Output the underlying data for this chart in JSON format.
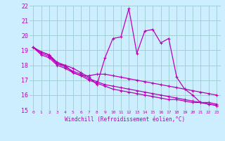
{
  "xlabel": "Windchill (Refroidissement éolien,°C)",
  "xlim": [
    -0.5,
    23.5
  ],
  "ylim": [
    15,
    22
  ],
  "yticks": [
    15,
    16,
    17,
    18,
    19,
    20,
    21,
    22
  ],
  "xticks": [
    0,
    1,
    2,
    3,
    4,
    5,
    6,
    7,
    8,
    9,
    10,
    11,
    12,
    13,
    14,
    15,
    16,
    17,
    18,
    19,
    20,
    21,
    22,
    23
  ],
  "bg_color": "#cceeff",
  "line_color": "#bb00bb",
  "grid_color": "#99cccc",
  "line1_y": [
    19.2,
    18.9,
    18.7,
    18.1,
    18.0,
    17.8,
    17.5,
    17.2,
    16.7,
    18.5,
    19.8,
    19.9,
    21.8,
    18.8,
    20.3,
    20.4,
    19.5,
    19.8,
    17.2,
    16.4,
    16.0,
    15.5,
    15.5,
    15.4
  ],
  "line2_y": [
    19.2,
    18.9,
    18.7,
    18.2,
    18.0,
    17.5,
    17.3,
    17.3,
    17.4,
    17.4,
    17.3,
    17.2,
    17.1,
    17.0,
    16.9,
    16.8,
    16.7,
    16.6,
    16.5,
    16.4,
    16.3,
    16.2,
    16.1,
    16.0
  ],
  "line3_y": [
    19.2,
    18.7,
    18.5,
    18.0,
    17.8,
    17.5,
    17.3,
    17.0,
    16.8,
    16.6,
    16.4,
    16.3,
    16.2,
    16.1,
    16.0,
    15.9,
    15.8,
    15.7,
    15.7,
    15.6,
    15.5,
    15.5,
    15.4,
    15.3
  ],
  "line4_y": [
    19.2,
    18.8,
    18.6,
    18.1,
    17.9,
    17.6,
    17.4,
    17.1,
    16.9,
    16.7,
    16.6,
    16.5,
    16.4,
    16.3,
    16.2,
    16.1,
    16.0,
    15.9,
    15.8,
    15.7,
    15.6,
    15.5,
    15.4,
    15.3
  ]
}
